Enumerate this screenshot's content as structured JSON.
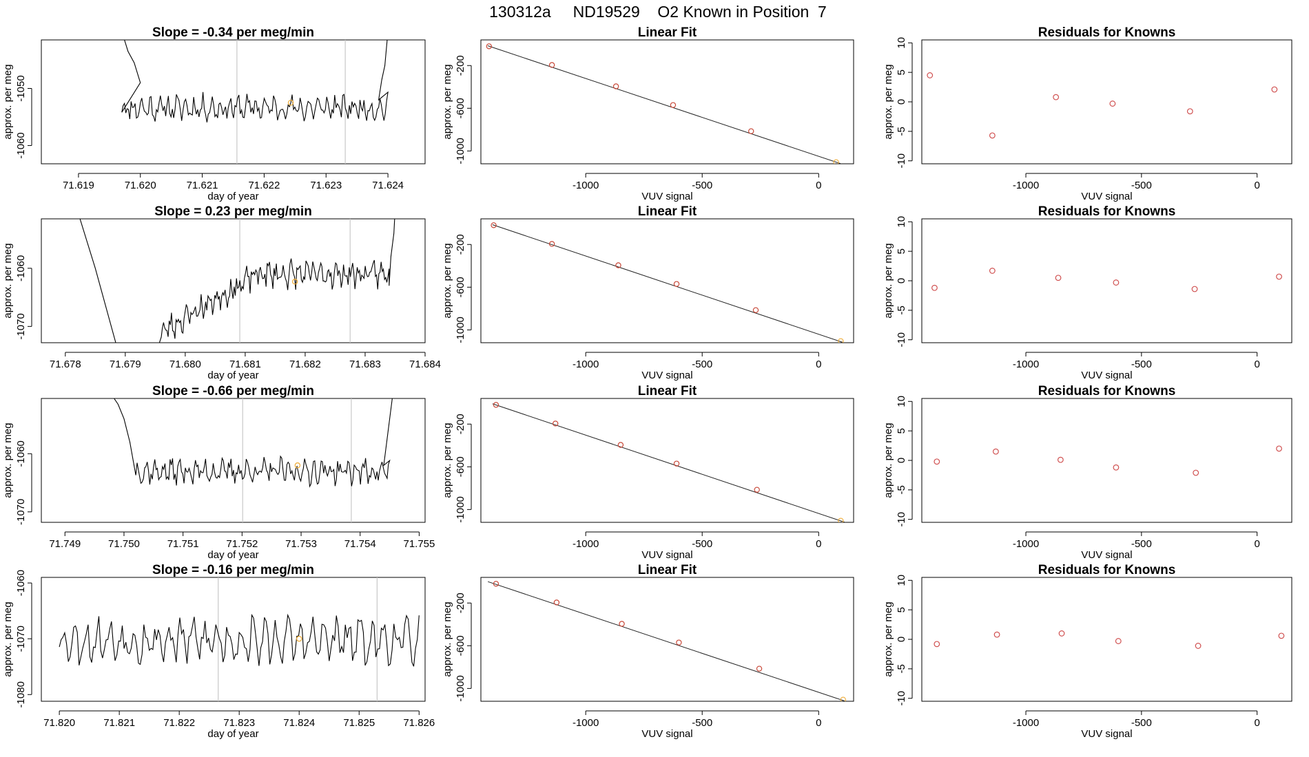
{
  "figure": {
    "title": "130312a     ND19529    O2 Known in Position  7"
  },
  "style": {
    "trace_color": "#000000",
    "marker_color": "#f0b040",
    "residual_color": "#d05050",
    "fit_point_color": "#c84838",
    "vline_color": "#c8c8c8",
    "axis_color": "#000000"
  },
  "chart_data": [
    {
      "type": "line",
      "panel": "time-series",
      "row": 1,
      "title": "Slope =  -0.34  per meg/min",
      "xlabel": "day of year",
      "ylabel": "approx. per meg",
      "xlim": [
        71.6184,
        71.6246
      ],
      "ylim": [
        -1063.2,
        -1041.5
      ],
      "xticks": [
        "71.619",
        "71.620",
        "71.621",
        "71.622",
        "71.623",
        "71.624"
      ],
      "yticks": [
        "-1060",
        "-1050"
      ],
      "trace": {
        "start": 71.6197,
        "end": 71.624,
        "base": -1053.4,
        "amp": 1.3,
        "noise": 1.5,
        "seed": 11,
        "rise_left": [
          [
            71.6197,
            -1040
          ],
          [
            71.6198,
            -1043.5
          ],
          [
            71.6199,
            -1045.5
          ],
          [
            71.62,
            -1049
          ]
        ],
        "rise_right": [
          [
            71.62385,
            -1052
          ],
          [
            71.6239,
            -1048.5
          ],
          [
            71.62395,
            -1046
          ],
          [
            71.624,
            -1040
          ]
        ]
      },
      "vlines": [
        71.62156,
        71.62331
      ],
      "marker": {
        "x": 71.62243,
        "y": -1052.5
      }
    },
    {
      "type": "scatter",
      "panel": "linear-fit",
      "row": 1,
      "title": "Linear Fit",
      "xlabel": "VUV signal",
      "ylabel": "approx. per meg",
      "xlim": [
        -1450,
        150
      ],
      "ylim": [
        -1120,
        40
      ],
      "xticks": [
        "-1000",
        "-500",
        "0"
      ],
      "yticks": [
        "-200",
        "-600",
        "-1000"
      ],
      "points": [
        [
          -1415,
          -20
        ],
        [
          -1145,
          -195
        ],
        [
          -870,
          -395
        ],
        [
          -625,
          -570
        ],
        [
          -290,
          -815
        ],
        [
          75,
          -1105
        ]
      ],
      "fit_line": [
        [
          -1420,
          -15
        ],
        [
          110,
          -1130
        ]
      ]
    },
    {
      "type": "scatter",
      "panel": "residuals",
      "row": 1,
      "title": "Residuals for Knowns",
      "xlabel": "VUV signal",
      "ylabel": "approx. per meg",
      "xlim": [
        -1450,
        150
      ],
      "ylim": [
        -10.5,
        10.5
      ],
      "xticks": [
        "-1000",
        "-500",
        "0"
      ],
      "yticks": [
        "10",
        "5",
        "0",
        "-5",
        "-10"
      ],
      "points": [
        [
          -1415,
          4.5
        ],
        [
          -1145,
          -5.7
        ],
        [
          -870,
          0.8
        ],
        [
          -625,
          -0.3
        ],
        [
          -290,
          -1.6
        ],
        [
          75,
          2.1
        ]
      ]
    },
    {
      "type": "line",
      "panel": "time-series",
      "row": 2,
      "title": "Slope =  0.23  per meg/min",
      "xlabel": "day of year",
      "ylabel": "approx. per meg",
      "xlim": [
        71.6776,
        71.684
      ],
      "ylim": [
        -1072.8,
        -1051.5
      ],
      "xticks": [
        "71.678",
        "71.679",
        "71.680",
        "71.681",
        "71.682",
        "71.683",
        "71.684"
      ],
      "yticks": [
        "-1060",
        "-1070"
      ],
      "trace": {
        "start": 71.6796,
        "end": 71.6834,
        "base": -1061.0,
        "amp": 1.3,
        "noise": 1.6,
        "seed": 23,
        "trend_from": -1071,
        "trend_len": 0.0016,
        "rise_left": [
          [
            71.6782,
            -1050
          ],
          [
            71.6785,
            -1060
          ],
          [
            71.6789,
            -1075
          ],
          [
            71.6795,
            -1075
          ]
        ],
        "rise_right": [
          [
            71.6834,
            -1063
          ],
          [
            71.68343,
            -1058
          ],
          [
            71.68348,
            -1054
          ],
          [
            71.6835,
            -1050
          ]
        ]
      },
      "vlines": [
        71.68091,
        71.68275
      ],
      "marker": {
        "x": 71.68183,
        "y": -1062.3
      }
    },
    {
      "type": "scatter",
      "panel": "linear-fit",
      "row": 2,
      "title": "Linear Fit",
      "xlabel": "VUV signal",
      "ylabel": "approx. per meg",
      "xlim": [
        -1450,
        150
      ],
      "ylim": [
        -1120,
        40
      ],
      "xticks": [
        "-1000",
        "-500",
        "0"
      ],
      "yticks": [
        "-200",
        "-600",
        "-1000"
      ],
      "points": [
        [
          -1395,
          -20
        ],
        [
          -1145,
          -195
        ],
        [
          -860,
          -395
        ],
        [
          -610,
          -570
        ],
        [
          -270,
          -815
        ],
        [
          95,
          -1105
        ]
      ],
      "fit_line": [
        [
          -1400,
          -15
        ],
        [
          115,
          -1125
        ]
      ]
    },
    {
      "type": "scatter",
      "panel": "residuals",
      "row": 2,
      "title": "Residuals for Knowns",
      "xlabel": "VUV signal",
      "ylabel": "approx. per meg",
      "xlim": [
        -1450,
        150
      ],
      "ylim": [
        -10.5,
        10.5
      ],
      "xticks": [
        "-1000",
        "-500",
        "0"
      ],
      "yticks": [
        "10",
        "5",
        "0",
        "-5",
        "-10"
      ],
      "points": [
        [
          -1395,
          -1.2
        ],
        [
          -1145,
          1.7
        ],
        [
          -860,
          0.5
        ],
        [
          -610,
          -0.3
        ],
        [
          -270,
          -1.4
        ],
        [
          95,
          0.7
        ]
      ]
    },
    {
      "type": "line",
      "panel": "time-series",
      "row": 3,
      "title": "Slope =  -0.66  per meg/min",
      "xlabel": "day of year",
      "ylabel": "approx. per meg",
      "xlim": [
        71.7486,
        71.7551
      ],
      "ylim": [
        -1071.8,
        -1050.5
      ],
      "xticks": [
        "71.749",
        "71.750",
        "71.751",
        "71.752",
        "71.753",
        "71.754",
        "71.755"
      ],
      "yticks": [
        "-1060",
        "-1070"
      ],
      "trace": {
        "start": 71.7502,
        "end": 71.7545,
        "base": -1063.0,
        "amp": 1.3,
        "noise": 1.4,
        "seed": 37,
        "rise_left": [
          [
            71.7498,
            -1050
          ],
          [
            71.7499,
            -1051.5
          ],
          [
            71.75,
            -1054
          ],
          [
            71.7501,
            -1058
          ]
        ],
        "rise_right": [
          [
            71.7544,
            -1062
          ],
          [
            71.75445,
            -1058
          ],
          [
            71.7545,
            -1054
          ],
          [
            71.75455,
            -1050
          ]
        ]
      },
      "vlines": [
        71.75201,
        71.75385
      ],
      "marker": {
        "x": 71.75294,
        "y": -1062.0
      }
    },
    {
      "type": "scatter",
      "panel": "linear-fit",
      "row": 3,
      "title": "Linear Fit",
      "xlabel": "VUV signal",
      "ylabel": "approx. per meg",
      "xlim": [
        -1450,
        150
      ],
      "ylim": [
        -1120,
        40
      ],
      "xticks": [
        "-1000",
        "-500",
        "0"
      ],
      "yticks": [
        "-200",
        "-600",
        "-1000"
      ],
      "points": [
        [
          -1385,
          -20
        ],
        [
          -1130,
          -195
        ],
        [
          -850,
          -395
        ],
        [
          -610,
          -570
        ],
        [
          -265,
          -815
        ],
        [
          95,
          -1105
        ]
      ],
      "fit_line": [
        [
          -1400,
          -10
        ],
        [
          120,
          -1125
        ]
      ]
    },
    {
      "type": "scatter",
      "panel": "residuals",
      "row": 3,
      "title": "Residuals for Knowns",
      "xlabel": "VUV signal",
      "ylabel": "approx. per meg",
      "xlim": [
        -1450,
        150
      ],
      "ylim": [
        -10.5,
        10.5
      ],
      "xticks": [
        "-1000",
        "-500",
        "0"
      ],
      "yticks": [
        "10",
        "5",
        "0",
        "-5",
        "-10"
      ],
      "points": [
        [
          -1385,
          -0.2
        ],
        [
          -1130,
          1.5
        ],
        [
          -850,
          0.1
        ],
        [
          -610,
          -1.2
        ],
        [
          -265,
          -2.1
        ],
        [
          95,
          2.0
        ]
      ]
    },
    {
      "type": "line",
      "panel": "time-series",
      "row": 4,
      "title": "Slope =  -0.16  per meg/min",
      "xlabel": "day of year",
      "ylabel": "approx. per meg",
      "xlim": [
        71.8197,
        71.8261
      ],
      "ylim": [
        -1081.2,
        -1059.0
      ],
      "xticks": [
        "71.820",
        "71.821",
        "71.822",
        "71.823",
        "71.824",
        "71.825",
        "71.826"
      ],
      "yticks": [
        "-1060",
        "-1070",
        "-1080"
      ],
      "trace": {
        "start": 71.82,
        "end": 71.826,
        "base": -1070.3,
        "amp": 2.6,
        "noise": 2.4,
        "seed": 53
      },
      "vlines": [
        71.82265,
        71.8253
      ],
      "marker": {
        "x": 71.824,
        "y": -1070.0
      }
    },
    {
      "type": "scatter",
      "panel": "linear-fit",
      "row": 4,
      "title": "Linear Fit",
      "xlabel": "VUV signal",
      "ylabel": "approx. per meg",
      "xlim": [
        -1450,
        150
      ],
      "ylim": [
        -1120,
        40
      ],
      "xticks": [
        "-1000",
        "-500",
        "0"
      ],
      "yticks": [
        "-200",
        "-600",
        "-1000"
      ],
      "points": [
        [
          -1385,
          -20
        ],
        [
          -1125,
          -195
        ],
        [
          -845,
          -395
        ],
        [
          -600,
          -570
        ],
        [
          -255,
          -815
        ],
        [
          105,
          -1105
        ]
      ],
      "fit_line": [
        [
          -1420,
          0
        ],
        [
          115,
          -1120
        ]
      ]
    },
    {
      "type": "scatter",
      "panel": "residuals",
      "row": 4,
      "title": "Residuals for Knowns",
      "xlabel": "VUV signal",
      "ylabel": "approx. per meg",
      "xlim": [
        -1450,
        150
      ],
      "ylim": [
        -10.5,
        10.5
      ],
      "xticks": [
        "-1000",
        "-500",
        "0"
      ],
      "yticks": [
        "10",
        "5",
        "0",
        "-5",
        "-10"
      ],
      "points": [
        [
          -1385,
          -0.8
        ],
        [
          -1125,
          0.8
        ],
        [
          -845,
          1.0
        ],
        [
          -600,
          -0.3
        ],
        [
          -255,
          -1.1
        ],
        [
          105,
          0.6
        ]
      ]
    }
  ]
}
